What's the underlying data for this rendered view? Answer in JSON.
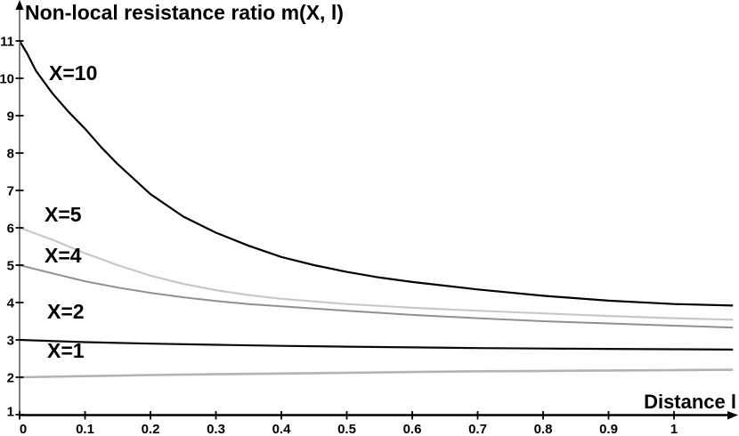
{
  "chart_data": {
    "type": "line",
    "title": "Non-local resistance ratio m(X, l)",
    "xlabel": "Distance l",
    "ylabel": "",
    "xlim": [
      0,
      1.096
    ],
    "ylim": [
      1,
      11
    ],
    "grid": false,
    "legend_position": "inline-curve-labels",
    "x_ticks": [
      0,
      0.1,
      0.2,
      0.3,
      0.4,
      0.5,
      0.6,
      0.7,
      0.8,
      0.9,
      1
    ],
    "x_tick_labels": [
      "0",
      "0.1",
      "0.2",
      "0.3",
      "0.4",
      "0.5",
      "0.6",
      "0.7",
      "0.8",
      "0.9",
      "1"
    ],
    "y_ticks": [
      1,
      2,
      3,
      4,
      5,
      6,
      7,
      8,
      9,
      10,
      11
    ],
    "y_tick_labels": [
      "1",
      "2",
      "3",
      "4",
      "5",
      "6",
      "7",
      "8",
      "9",
      "10",
      "11"
    ],
    "colors": {
      "background": "#ffffff",
      "x_axis": "#000000",
      "y_axis": "#808080",
      "ticks": "#000000",
      "text": "#000000"
    },
    "series": [
      {
        "name": "X=10",
        "color": "#000000",
        "x": [
          0,
          0.012,
          0.025,
          0.05,
          0.075,
          0.1,
          0.125,
          0.15,
          0.2,
          0.25,
          0.3,
          0.35,
          0.4,
          0.45,
          0.5,
          0.55,
          0.6,
          0.7,
          0.8,
          0.9,
          1.0,
          1.09
        ],
        "y": [
          11.0,
          10.65,
          10.2,
          9.6,
          9.1,
          8.65,
          8.15,
          7.7,
          6.9,
          6.3,
          5.87,
          5.52,
          5.22,
          5.0,
          4.82,
          4.67,
          4.55,
          4.35,
          4.18,
          4.05,
          3.96,
          3.92
        ]
      },
      {
        "name": "X=5",
        "color": "#c8c8c8",
        "x": [
          0,
          0.05,
          0.1,
          0.15,
          0.2,
          0.25,
          0.3,
          0.35,
          0.4,
          0.5,
          0.6,
          0.7,
          0.8,
          0.9,
          1.0,
          1.09
        ],
        "y": [
          6.0,
          5.68,
          5.32,
          5.0,
          4.72,
          4.5,
          4.33,
          4.2,
          4.1,
          3.96,
          3.86,
          3.78,
          3.71,
          3.64,
          3.58,
          3.54
        ]
      },
      {
        "name": "X=4",
        "color": "#909090",
        "x": [
          0,
          0.05,
          0.1,
          0.15,
          0.2,
          0.25,
          0.3,
          0.35,
          0.4,
          0.5,
          0.6,
          0.7,
          0.8,
          0.9,
          1.0,
          1.09
        ],
        "y": [
          5.0,
          4.78,
          4.57,
          4.4,
          4.26,
          4.14,
          4.04,
          3.96,
          3.9,
          3.78,
          3.67,
          3.58,
          3.5,
          3.44,
          3.38,
          3.33
        ]
      },
      {
        "name": "X=2",
        "color": "#0a0a0a",
        "x": [
          0,
          0.1,
          0.2,
          0.3,
          0.4,
          0.5,
          0.6,
          0.7,
          0.8,
          0.9,
          1.0,
          1.09
        ],
        "y": [
          3.0,
          2.94,
          2.9,
          2.87,
          2.84,
          2.82,
          2.8,
          2.78,
          2.77,
          2.76,
          2.75,
          2.74
        ]
      },
      {
        "name": "X=1",
        "color": "#b3b3b3",
        "x": [
          0,
          0.1,
          0.2,
          0.3,
          0.4,
          0.5,
          0.6,
          0.7,
          0.8,
          0.9,
          1.0,
          1.09
        ],
        "y": [
          2.0,
          2.03,
          2.06,
          2.08,
          2.1,
          2.12,
          2.14,
          2.16,
          2.17,
          2.18,
          2.19,
          2.2
        ]
      }
    ]
  }
}
